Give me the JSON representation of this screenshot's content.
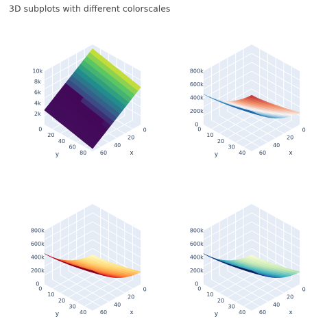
{
  "figure": {
    "title": "3D subplots with different colorscales"
  },
  "chart_data": [
    {
      "type": "surface",
      "subplot": "top-left",
      "colorscale": "Viridis",
      "colors": [
        "#440154",
        "#3b528b",
        "#21918c",
        "#5ec962",
        "#fde725"
      ],
      "x_ticks": [
        "0",
        "20",
        "40",
        "60"
      ],
      "y_ticks": [
        "0",
        "20",
        "40",
        "60",
        "80"
      ],
      "z_ticks": [
        "2k",
        "4k",
        "6k",
        "8k",
        "10k"
      ],
      "xlabel": "x",
      "ylabel": "y",
      "xlim": [
        0,
        70
      ],
      "ylim": [
        0,
        90
      ],
      "zlim": [
        0,
        10000
      ]
    },
    {
      "type": "surface",
      "subplot": "top-right",
      "colorscale": "RdBu",
      "colors": [
        "#b2182b",
        "#ef8a62",
        "#f7f7f7",
        "#67a9cf",
        "#2166ac"
      ],
      "x_ticks": [
        "0",
        "20",
        "40",
        "60"
      ],
      "y_ticks": [
        "0",
        "10",
        "20",
        "30",
        "40"
      ],
      "z_ticks": [
        "0",
        "200k",
        "400k",
        "600k",
        "800k"
      ],
      "xlabel": "x",
      "ylabel": "y",
      "xlim": [
        0,
        70
      ],
      "ylim": [
        0,
        45
      ],
      "zlim": [
        0,
        800000
      ]
    },
    {
      "type": "surface",
      "subplot": "bottom-left",
      "colorscale": "YlOrRd",
      "colors": [
        "#ffffcc",
        "#fed976",
        "#fd8d3c",
        "#e31a1c",
        "#800026"
      ],
      "x_ticks": [
        "0",
        "20",
        "40",
        "60"
      ],
      "y_ticks": [
        "0",
        "10",
        "20",
        "30",
        "40"
      ],
      "z_ticks": [
        "0",
        "200k",
        "400k",
        "600k",
        "800k"
      ],
      "xlabel": "x",
      "ylabel": "y",
      "xlim": [
        0,
        70
      ],
      "ylim": [
        0,
        45
      ],
      "zlim": [
        0,
        800000
      ]
    },
    {
      "type": "surface",
      "subplot": "bottom-right",
      "colorscale": "YlGnBu",
      "colors": [
        "#ffffd9",
        "#c7e9b4",
        "#41b6c4",
        "#225ea8",
        "#081d58"
      ],
      "x_ticks": [
        "0",
        "20",
        "40",
        "60"
      ],
      "y_ticks": [
        "0",
        "10",
        "20",
        "30",
        "40"
      ],
      "z_ticks": [
        "0",
        "200k",
        "400k",
        "600k",
        "800k"
      ],
      "xlabel": "x",
      "ylabel": "y",
      "xlim": [
        0,
        70
      ],
      "ylim": [
        0,
        45
      ],
      "zlim": [
        0,
        800000
      ]
    }
  ]
}
